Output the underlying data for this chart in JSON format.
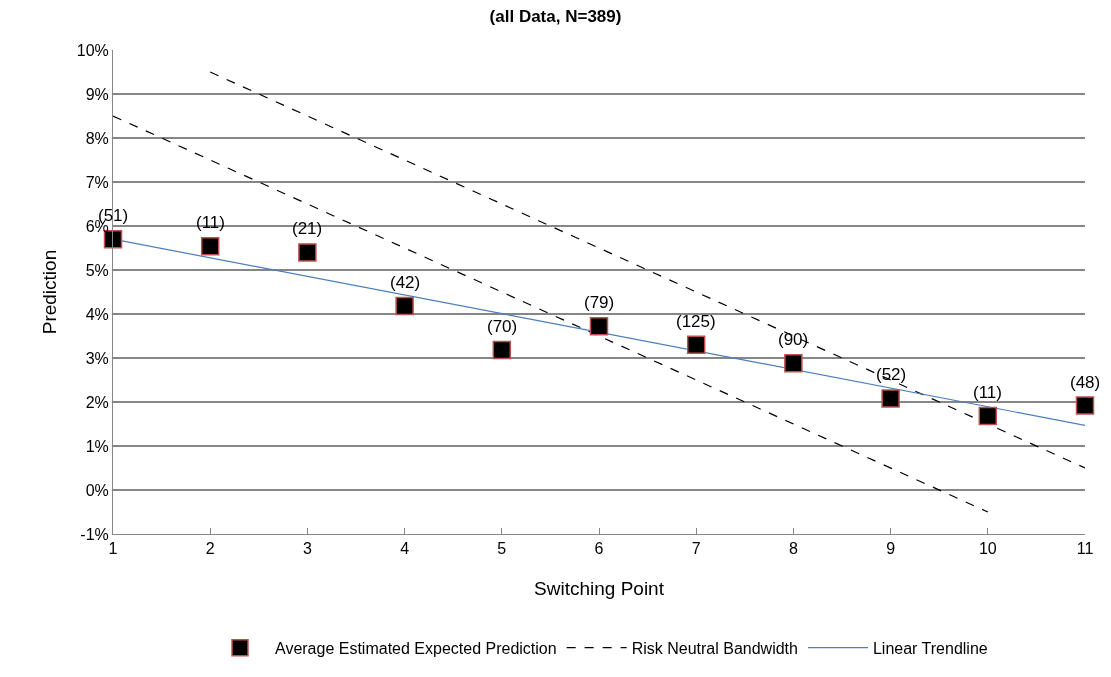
{
  "chart_data": {
    "type": "scatter",
    "title": "(all Data, N=389)",
    "xlabel": "Switching Point",
    "ylabel": "Prediction",
    "x": [
      1,
      2,
      3,
      4,
      5,
      6,
      7,
      8,
      9,
      10,
      11
    ],
    "series": [
      {
        "name": "Average Estimated Expected Prediction",
        "marker": "square",
        "color": "#000000",
        "values": [
          5.7,
          5.54,
          5.4,
          4.18,
          3.18,
          3.72,
          3.3,
          2.88,
          2.08,
          1.68,
          1.92
        ]
      },
      {
        "name": "Risk Neutral Bandwidth",
        "type": "line",
        "line_style": "dashed",
        "color": "#000000",
        "x": [
          2,
          11
        ],
        "values": [
          9.5,
          0.5
        ]
      },
      {
        "type": "line",
        "line_style": "dashed",
        "color": "#000000",
        "x": [
          1,
          10
        ],
        "values": [
          8.5,
          -0.5
        ]
      },
      {
        "name": "Linear Trendline",
        "type": "line",
        "line_style": "solid",
        "color": "#4a7ebb",
        "x": [
          1,
          11
        ],
        "values": [
          5.7,
          1.47
        ]
      }
    ],
    "xlim": [
      1,
      11
    ],
    "xticks": [
      1,
      2,
      3,
      4,
      5,
      6,
      7,
      8,
      9,
      10,
      11
    ],
    "ylim": [
      -1,
      10
    ],
    "yticks": [
      {
        "value": -1,
        "label": "-1%"
      },
      {
        "value": 0,
        "label": "0%"
      },
      {
        "value": 1,
        "label": "1%"
      },
      {
        "value": 2,
        "label": "2%"
      },
      {
        "value": 3,
        "label": "3%"
      },
      {
        "value": 4,
        "label": "4%"
      },
      {
        "value": 5,
        "label": "5%"
      },
      {
        "value": 6,
        "label": "6%"
      },
      {
        "value": 7,
        "label": "7%"
      },
      {
        "value": 8,
        "label": "8%"
      },
      {
        "value": 9,
        "label": "9%"
      },
      {
        "value": 10,
        "label": "10%"
      }
    ],
    "annotations": [
      {
        "text": "(51)",
        "x": 1,
        "y": 5.7
      },
      {
        "text": "(11)",
        "x": 2,
        "y": 5.54
      },
      {
        "text": "(21)",
        "x": 3,
        "y": 5.4
      },
      {
        "text": "(42)",
        "x": 4,
        "y": 4.18
      },
      {
        "text": "(70)",
        "x": 5,
        "y": 3.18
      },
      {
        "text": "(79)",
        "x": 6,
        "y": 3.72
      },
      {
        "text": "(125)",
        "x": 7,
        "y": 3.3
      },
      {
        "text": "(90)",
        "x": 8,
        "y": 2.88
      },
      {
        "text": "(52)",
        "x": 9,
        "y": 2.08
      },
      {
        "text": "(11)",
        "x": 10,
        "y": 1.68
      },
      {
        "text": "(48)",
        "x": 11,
        "y": 1.92
      }
    ],
    "grid": "y",
    "legend": "bottom"
  }
}
